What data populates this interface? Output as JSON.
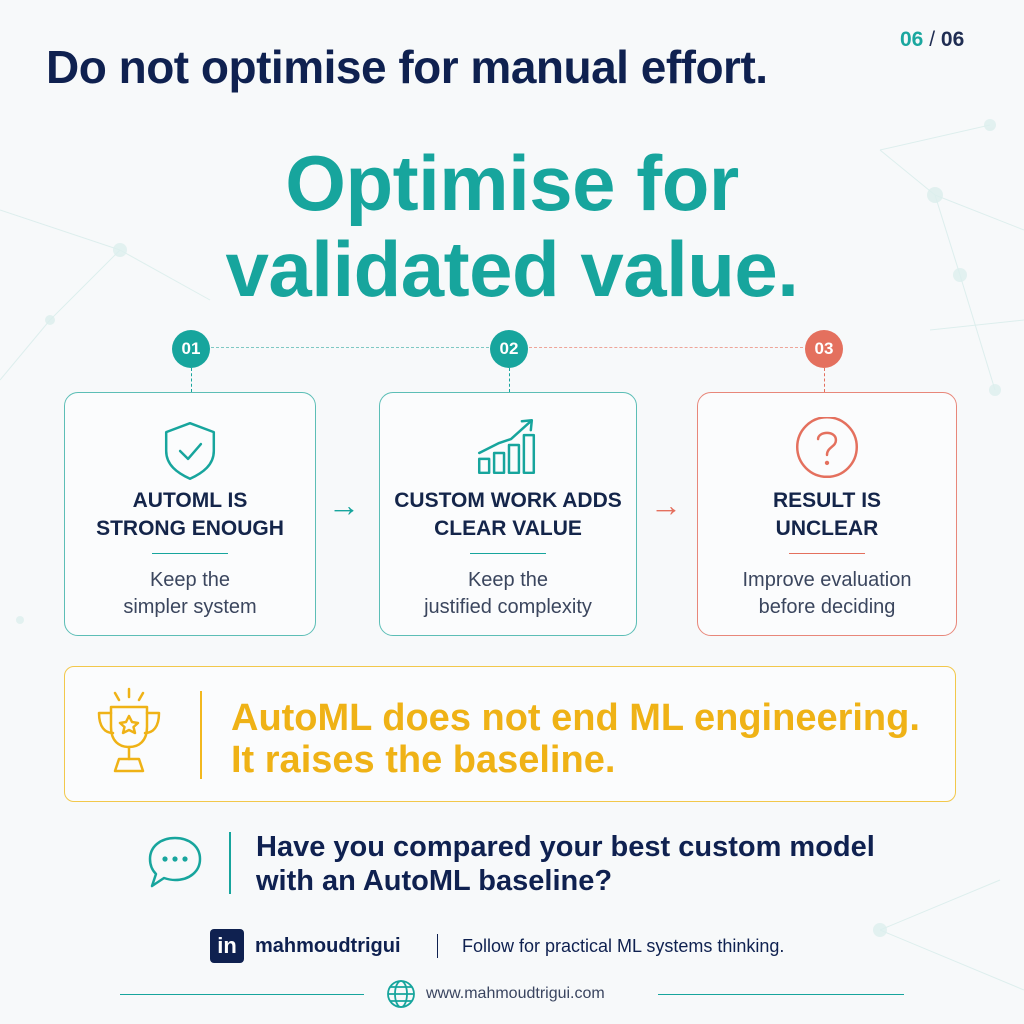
{
  "page_counter": {
    "current": "06",
    "separator": "/",
    "total": "06"
  },
  "headline": "Do not optimise for manual effort.",
  "hero": {
    "line1": "Optimise for",
    "line2": "validated value."
  },
  "colors": {
    "teal": "#17a59d",
    "coral": "#e4705e",
    "gold": "#efb216",
    "navy": "#0f2150"
  },
  "steps": [
    {
      "number": "01",
      "title_line1": "AUTOML IS",
      "title_line2": "STRONG ENOUGH",
      "desc_line1": "Keep the",
      "desc_line2": "simpler system",
      "icon": "shield-check-icon",
      "color": "#17a59d"
    },
    {
      "number": "02",
      "title_line1": "CUSTOM WORK ADDS",
      "title_line2": "CLEAR VALUE",
      "desc_line1": "Keep the",
      "desc_line2": "justified complexity",
      "icon": "growth-chart-icon",
      "color": "#17a59d"
    },
    {
      "number": "03",
      "title_line1": "RESULT IS",
      "title_line2": "UNCLEAR",
      "desc_line1": "Improve evaluation",
      "desc_line2": "before deciding",
      "icon": "question-icon",
      "color": "#e4705e"
    }
  ],
  "callout": {
    "line1": "AutoML does not end ML engineering.",
    "line2": "It raises the baseline.",
    "icon": "trophy-icon"
  },
  "cta": {
    "line1": "Have you compared your best custom model",
    "line2": "with an AutoML baseline?",
    "icon": "chat-bubble-icon"
  },
  "footer": {
    "linkedin_glyph": "in",
    "handle": "mahmoudtrigui",
    "divider": "|",
    "tagline": "Follow for practical ML systems thinking.",
    "website": "www.mahmoudtrigui.com",
    "icons": [
      "linkedin-icon",
      "globe-icon"
    ]
  }
}
